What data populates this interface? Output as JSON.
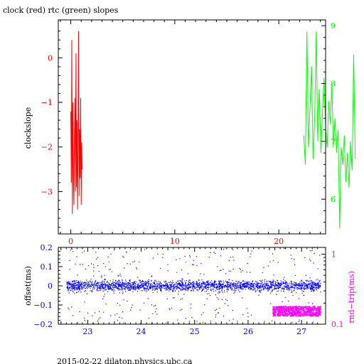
{
  "title": "clock (red) rtc (green) slopes",
  "footer": "2015-02-22  dilaton.physics.ubc.ca",
  "colors": {
    "clock": "#ff0000",
    "rtc": "#00ff00",
    "offset": "#0000ff",
    "roundtrip": "#ff00ff",
    "frame": "#000000"
  },
  "chart_data": [
    {
      "type": "line",
      "ylabel": "clockslope",
      "xlim": [
        -1.2,
        24.5
      ],
      "ylim": [
        -3.95,
        0.85
      ],
      "x_ticks": [
        0,
        10,
        20
      ],
      "y_ticks": [
        0,
        -1,
        -2,
        -3
      ],
      "y2lim": [
        5.4,
        9.1
      ],
      "y2_ticks": [
        6,
        7,
        8,
        9
      ],
      "series": [
        {
          "name": "clock",
          "axis": "left",
          "color": "#ff0000",
          "x": [
            0.0,
            0.05,
            0.1,
            0.15,
            0.2,
            0.25,
            0.3,
            0.35,
            0.4,
            0.45,
            0.5,
            0.55,
            0.6,
            0.65,
            0.7,
            0.75,
            0.8,
            0.85,
            0.9,
            0.95,
            1.0,
            1.05,
            1.1
          ],
          "values": [
            -1.2,
            -2.8,
            0.4,
            -3.5,
            -1.0,
            -2.6,
            -3.3,
            -1.8,
            -0.9,
            -3.0,
            0.1,
            -2.9,
            -1.4,
            -3.4,
            -2.0,
            0.6,
            -3.1,
            -1.6,
            -2.7,
            -0.9,
            -3.3,
            -1.9,
            -2.5
          ]
        },
        {
          "name": "rtc",
          "axis": "right",
          "color": "#00ff00",
          "x": [
            22.4,
            22.55,
            22.7,
            22.85,
            23.0,
            23.15,
            23.3,
            23.45,
            23.6,
            23.75,
            23.9,
            24.05,
            24.2,
            24.35,
            24.5,
            24.65,
            24.8,
            24.95,
            25.1,
            25.25,
            25.4,
            25.55,
            25.7,
            25.85,
            26.0,
            26.15,
            26.3,
            26.45,
            26.6,
            26.75,
            26.9,
            27.05,
            27.2,
            27.35
          ],
          "values": [
            7.1,
            6.6,
            8.9,
            6.9,
            7.6,
            8.3,
            6.7,
            7.4,
            8.9,
            7.0,
            7.9,
            6.8,
            7.5,
            8.1,
            7.2,
            6.9,
            7.7,
            7.3,
            8.0,
            6.9,
            7.4,
            6.8,
            7.2,
            5.5,
            6.9,
            6.6,
            7.1,
            6.3,
            6.8,
            6.2,
            7.0,
            6.5,
            8.5,
            6.7
          ]
        }
      ]
    },
    {
      "type": "scatter",
      "ylabel": "offset(ms)",
      "y2label": "rnd−trip(ms)",
      "xlim": [
        22.45,
        27.45
      ],
      "ylim": [
        -0.2,
        0.2
      ],
      "x_ticks": [
        23,
        24,
        25,
        26,
        27
      ],
      "y_ticks": [
        0.2,
        0.1,
        0,
        -0.1,
        -0.2
      ],
      "y_tick_labels": [
        "0.2",
        "0.1",
        "0",
        "−0.1",
        "−0.2"
      ],
      "y2_scale": "log",
      "y2lim": [
        0.1,
        1.25
      ],
      "y2_ticks": [
        1,
        0.1
      ],
      "y2_tick_labels": [
        "1",
        "0.1"
      ],
      "series": [
        {
          "name": "offset",
          "axis": "left",
          "color": "#0000ff",
          "x_range": [
            22.6,
            27.35
          ],
          "typical_band": [
            -0.04,
            0.04
          ],
          "outlier_range": [
            -0.2,
            0.2
          ]
        },
        {
          "name": "rnd-trip",
          "axis": "right",
          "color": "#ff00ff",
          "x_range": [
            26.45,
            27.35
          ],
          "typical_band": [
            0.13,
            0.18
          ]
        }
      ]
    }
  ]
}
